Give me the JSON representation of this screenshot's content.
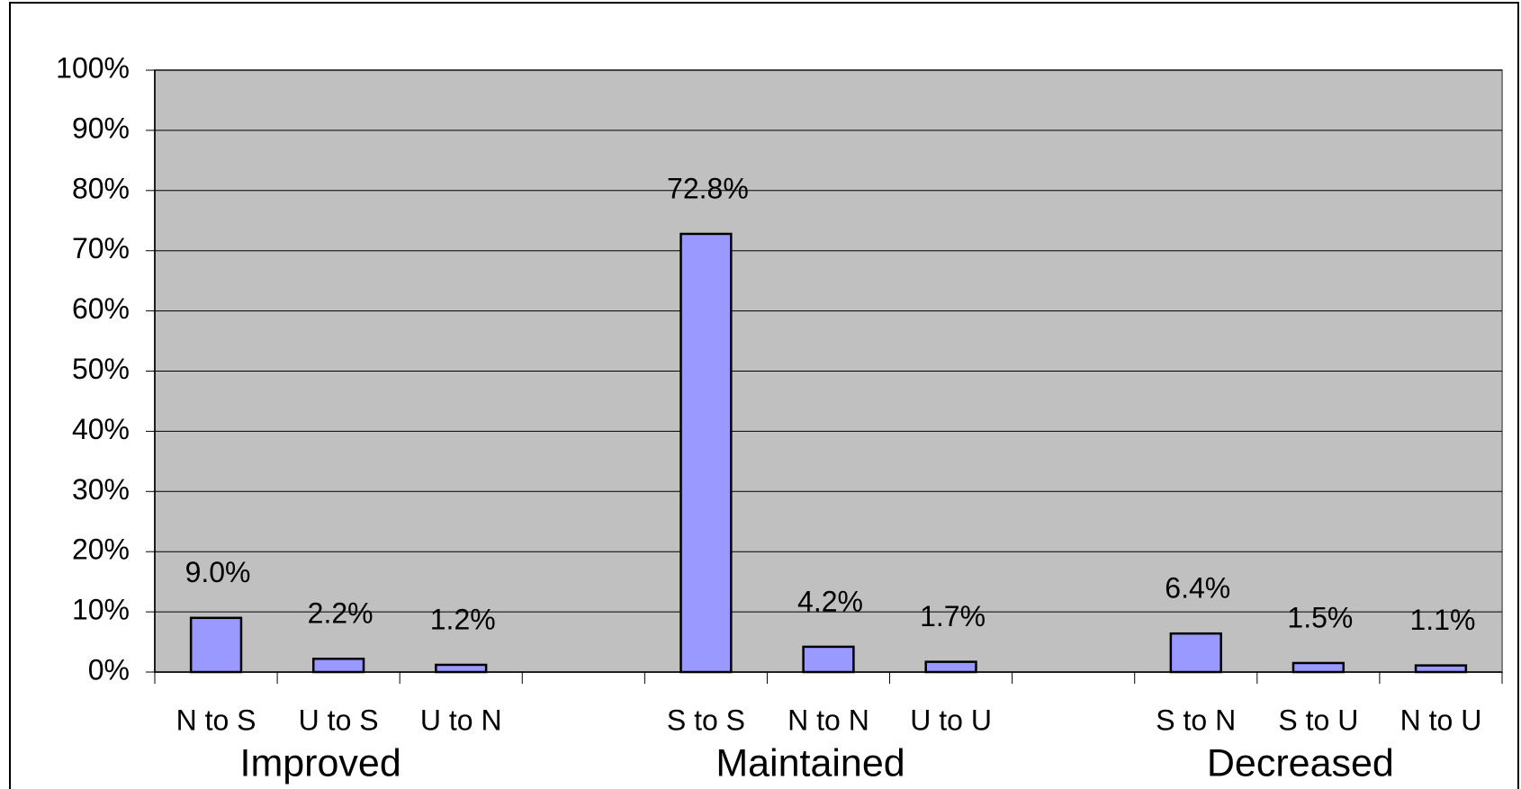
{
  "chart_data": {
    "type": "bar",
    "categories": [
      "N to S",
      "U to S",
      "U to N",
      null,
      "S to S",
      "N to N",
      "U to U",
      null,
      "S to N",
      "S to U",
      "N to U"
    ],
    "values": [
      9.0,
      2.2,
      1.2,
      null,
      72.8,
      4.2,
      1.7,
      null,
      6.4,
      1.5,
      1.1
    ],
    "value_labels": [
      "9.0%",
      "2.2%",
      "1.2%",
      null,
      "72.8%",
      "4.2%",
      "1.7%",
      null,
      "6.4%",
      "1.5%",
      "1.1%"
    ],
    "groups": [
      "Improved",
      "Maintained",
      "Decreased"
    ],
    "color": "#9999ff",
    "ylim": [
      0,
      100
    ],
    "yticks": [
      {
        "value": 0,
        "label": "0%"
      },
      {
        "value": 10,
        "label": "10%"
      },
      {
        "value": 20,
        "label": "20%"
      },
      {
        "value": 30,
        "label": "30%"
      },
      {
        "value": 40,
        "label": "40%"
      },
      {
        "value": 50,
        "label": "50%"
      },
      {
        "value": 60,
        "label": "60%"
      },
      {
        "value": 70,
        "label": "70%"
      },
      {
        "value": 80,
        "label": "80%"
      },
      {
        "value": 90,
        "label": "90%"
      },
      {
        "value": 100,
        "label": "100%"
      }
    ],
    "grid": true
  }
}
